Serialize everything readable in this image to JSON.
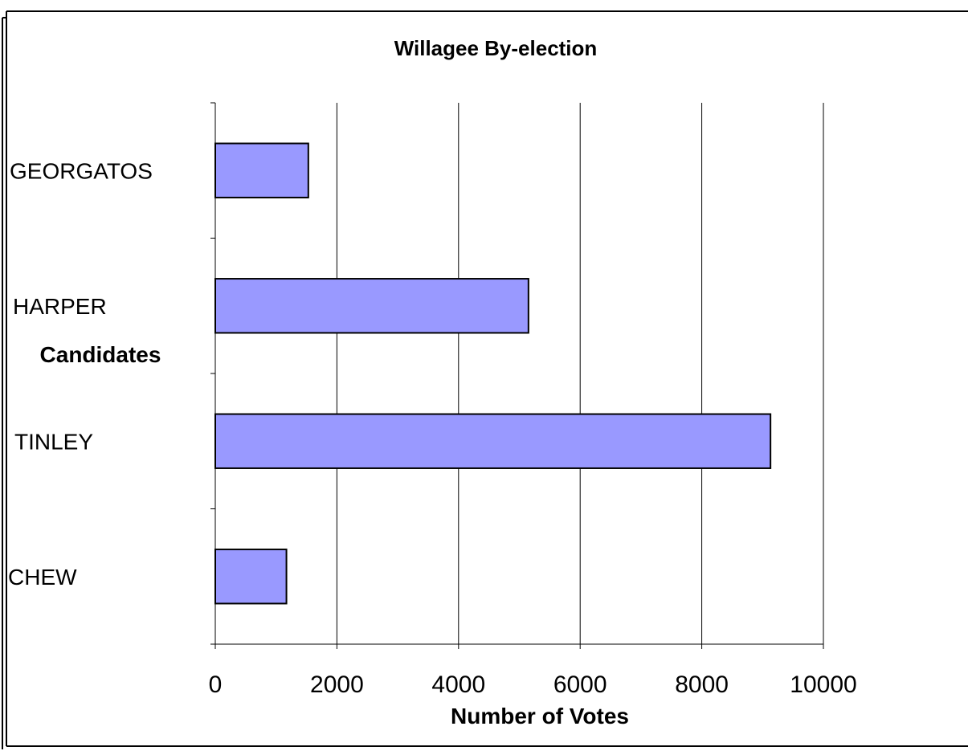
{
  "chart_data": {
    "type": "bar",
    "orientation": "horizontal",
    "title": "Willagee By-election",
    "xlabel": "Number of Votes",
    "ylabel": "Candidates",
    "categories": [
      "GEORGATOS",
      "HARPER",
      "TINLEY",
      "CHEW"
    ],
    "values": [
      1530,
      5150,
      9130,
      1170
    ],
    "xlim": [
      0,
      10000
    ],
    "xticks": [
      "0",
      "2000",
      "4000",
      "6000",
      "8000",
      "10000"
    ],
    "grid": "vertical",
    "legend": "none",
    "bar_color": "#9999ff"
  }
}
